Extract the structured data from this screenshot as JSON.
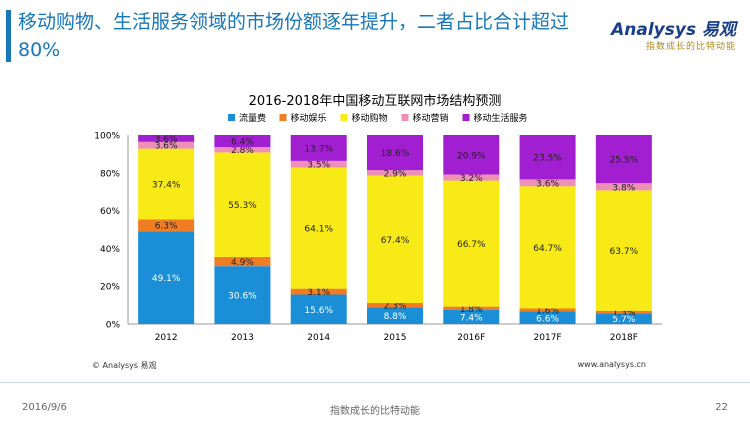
{
  "slide": {
    "headline": "移动购物、生活服务领域的市场份额逐年提升，二者占比合计超过80%",
    "brand_name": "Analysys 易观",
    "brand_slogan": "指数成长的比特动能",
    "source": "© Analysys 易观",
    "website": "www.analysys.cn",
    "footer_date": "2016/9/6",
    "footer_slogan": "指数成长的比特动能",
    "page_number": "22"
  },
  "chart_data": {
    "type": "bar",
    "stacked": true,
    "title": "2016-2018年中国移动互联网市场结构预测",
    "xlabel": "",
    "ylabel": "",
    "ylim": [
      0,
      100
    ],
    "yticks": [
      "0%",
      "20%",
      "40%",
      "60%",
      "80%",
      "100%"
    ],
    "categories": [
      "2012",
      "2013",
      "2014",
      "2015",
      "2016F",
      "2017F",
      "2018F"
    ],
    "legend_position": "top",
    "grid": false,
    "series": [
      {
        "name": "流量费",
        "color": "#1a8fd8",
        "values": [
          49.1,
          30.6,
          15.6,
          8.8,
          7.4,
          6.6,
          5.7
        ]
      },
      {
        "name": "移动娱乐",
        "color": "#f07c24",
        "values": [
          6.3,
          4.9,
          3.1,
          2.3,
          1.8,
          1.6,
          1.3
        ]
      },
      {
        "name": "移动购物",
        "color": "#f7ea16",
        "values": [
          37.4,
          55.3,
          64.1,
          67.4,
          66.7,
          64.7,
          63.7
        ]
      },
      {
        "name": "移动营销",
        "color": "#ee8fb8",
        "values": [
          3.6,
          2.8,
          3.5,
          2.9,
          3.2,
          3.6,
          3.8
        ]
      },
      {
        "name": "移动生活服务",
        "color": "#a21fd1",
        "values": [
          3.6,
          6.4,
          13.7,
          18.6,
          20.9,
          23.5,
          25.5
        ]
      }
    ]
  }
}
